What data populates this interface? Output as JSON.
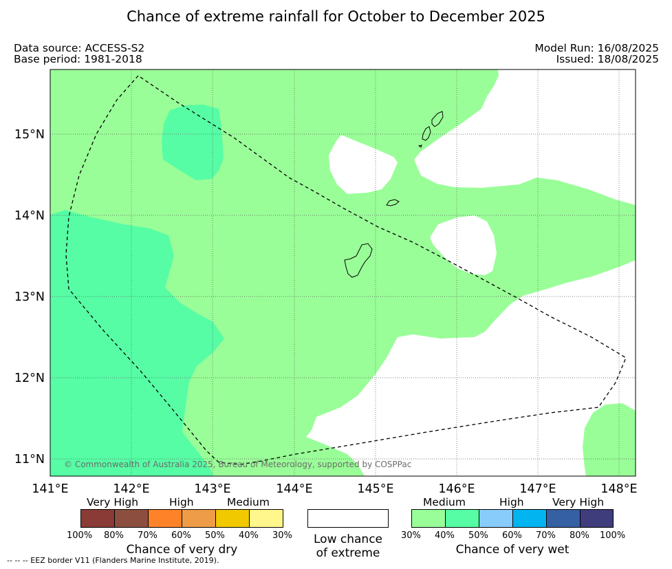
{
  "title": "Chance of extreme rainfall for October to December 2025",
  "meta": {
    "data_source": "Data source: ACCESS-S2",
    "base_period": "Base period: 1981-2018",
    "model_run": "Model Run: 16/08/2025",
    "issued": "Issued: 18/08/2025"
  },
  "map": {
    "x_ticks": [
      "141°E",
      "142°E",
      "143°E",
      "144°E",
      "145°E",
      "146°E",
      "147°E",
      "148°E"
    ],
    "y_ticks": [
      "15°N",
      "14°N",
      "13°N",
      "12°N",
      "11°N"
    ],
    "copyright": "© Commonwealth of Australia 2025, Bureau of Meteorology, supported by COSPPac",
    "colors": {
      "medium_wet": "#9afe98",
      "high_wet": "#56fda5",
      "land": "#ffffff",
      "eez": "#000000"
    }
  },
  "legend": {
    "dry": {
      "headers": [
        "Very High",
        "High",
        "Medium"
      ],
      "colors": [
        "#8a3b35",
        "#8c4f3f",
        "#fe8228",
        "#ee9c48",
        "#f0c900",
        "#fff68c"
      ],
      "ticks": [
        "100%",
        "80%",
        "70%",
        "60%",
        "50%",
        "40%",
        "30%"
      ],
      "label": "Chance of very dry"
    },
    "low": {
      "line1": "Low chance",
      "line2": "of extreme",
      "color": "#ffffff"
    },
    "wet": {
      "headers": [
        "Medium",
        "High",
        "Very High"
      ],
      "colors": [
        "#9afe98",
        "#56fda5",
        "#88ccfc",
        "#02b4f0",
        "#3660a4",
        "#3f3d7c"
      ],
      "ticks": [
        "30%",
        "40%",
        "50%",
        "60%",
        "70%",
        "80%",
        "100%"
      ],
      "label": "Chance of very wet"
    }
  },
  "footnote": "--  --  -- EEZ border V11 (Flanders Marine Institute, 2019)."
}
